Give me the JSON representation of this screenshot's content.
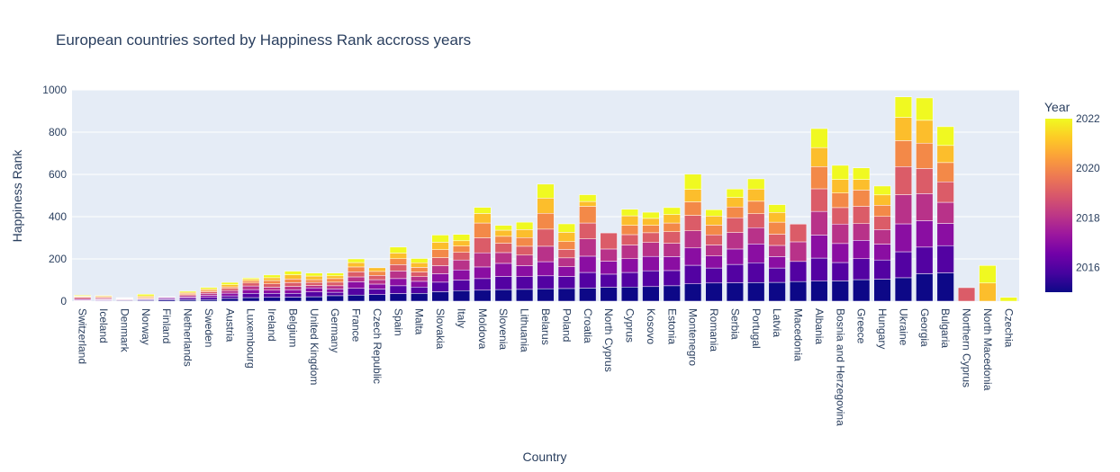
{
  "chart_data": {
    "type": "bar",
    "barmode": "stack",
    "title": "European countries sorted by Happiness Rank accross years",
    "xlabel": "Country",
    "ylabel": "Happiness Rank",
    "ylim": [
      0,
      1000
    ],
    "yticks": [
      0,
      200,
      400,
      600,
      800,
      1000
    ],
    "grid": true,
    "colorbar": {
      "title": "Year",
      "range": [
        2015,
        2022
      ],
      "ticks": [
        2016,
        2018,
        2020,
        2022
      ],
      "colorscale": [
        "#0d0887",
        "#46039f",
        "#7201a8",
        "#9c179e",
        "#bd3786",
        "#d8576b",
        "#ed7953",
        "#fb9f3a",
        "#fdca26",
        "#f0f921"
      ]
    },
    "years": [
      2015,
      2016,
      2017,
      2018,
      2019,
      2020,
      2021,
      2022
    ],
    "categories": [
      "Switzerland",
      "Iceland",
      "Denmark",
      "Norway",
      "Finland",
      "Netherlands",
      "Sweden",
      "Austria",
      "Luxembourg",
      "Ireland",
      "Belgium",
      "United Kingdom",
      "Germany",
      "France",
      "Czech Republic",
      "Spain",
      "Malta",
      "Slovakia",
      "Italy",
      "Moldova",
      "Slovenia",
      "Lithuania",
      "Belarus",
      "Poland",
      "Croatia",
      "North Cyprus",
      "Cyprus",
      "Kosovo",
      "Estonia",
      "Montenegro",
      "Romania",
      "Serbia",
      "Portugal",
      "Latvia",
      "Macedonia",
      "Albania",
      "Bosnia and Herzegovina",
      "Greece",
      "Hungary",
      "Ukraine",
      "Georgia",
      "Bulgaria",
      "Northern Cyprus",
      "North Macedonia",
      "Czechia"
    ],
    "series": [
      {
        "values": [
          1,
          2,
          3,
          4,
          6,
          7,
          8,
          13,
          17,
          18,
          19,
          21,
          26,
          29,
          31,
          36,
          37,
          45,
          50,
          52,
          55,
          56,
          59,
          60,
          62,
          66,
          67,
          69,
          73,
          82,
          86,
          87,
          88,
          89,
          93,
          95,
          96,
          102,
          104,
          111,
          130,
          134,
          null,
          null,
          null
        ]
      },
      {
        "values": [
          2,
          3,
          1,
          4,
          5,
          7,
          10,
          12,
          20,
          19,
          18,
          23,
          16,
          32,
          27,
          37,
          30,
          45,
          50,
          55,
          62,
          60,
          61,
          57,
          74,
          62,
          69,
          75,
          72,
          88,
          71,
          87,
          94,
          68,
          95,
          109,
          87,
          99,
          91,
          123,
          126,
          129,
          null,
          null,
          null
        ]
      },
      {
        "values": [
          4,
          3,
          2,
          1,
          5,
          6,
          10,
          13,
          18,
          15,
          17,
          19,
          16,
          31,
          23,
          34,
          27,
          40,
          48,
          55,
          62,
          52,
          67,
          46,
          77,
          61,
          65,
          68,
          66,
          82,
          57,
          73,
          89,
          54,
          null,
          109,
          90,
          87,
          75,
          132,
          125,
          105,
          null,
          null,
          null
        ]
      },
      {
        "values": [
          5,
          4,
          3,
          2,
          1,
          6,
          9,
          12,
          17,
          14,
          16,
          11,
          15,
          23,
          21,
          36,
          22,
          38,
          47,
          67,
          51,
          50,
          73,
          42,
          82,
          58,
          65,
          66,
          63,
          81,
          52,
          78,
          77,
          53,
          93,
          112,
          92,
          79,
          69,
          138,
          128,
          100,
          null,
          null,
          null
        ]
      },
      {
        "values": [
          6,
          4,
          2,
          3,
          1,
          5,
          7,
          10,
          14,
          16,
          18,
          15,
          17,
          24,
          20,
          30,
          22,
          38,
          36,
          71,
          44,
          42,
          81,
          40,
          75,
          76,
          49,
          46,
          55,
          73,
          48,
          70,
          66,
          53,
          84,
          107,
          78,
          82,
          62,
          133,
          119,
          97,
          64,
          null,
          null
        ]
      },
      {
        "values": [
          3,
          4,
          2,
          5,
          1,
          6,
          7,
          8,
          10,
          16,
          17,
          13,
          17,
          23,
          19,
          28,
          22,
          38,
          30,
          70,
          33,
          41,
          75,
          37,
          79,
          null,
          44,
          35,
          41,
          64,
          46,
          51,
          59,
          57,
          null,
          105,
          69,
          77,
          53,
          123,
          120,
          91,
          null,
          null,
          null
        ]
      },
      {
        "values": [
          3,
          4,
          2,
          6,
          1,
          5,
          7,
          10,
          8,
          13,
          20,
          17,
          13,
          21,
          17,
          27,
          22,
          35,
          25,
          45,
          29,
          38,
          72,
          44,
          23,
          null,
          45,
          33,
          40,
          59,
          43,
          45,
          58,
          46,
          null,
          90,
          64,
          50,
          49,
          110,
          108,
          81,
          null,
          86,
          null
        ]
      },
      {
        "values": [
          4,
          3,
          2,
          8,
          1,
          5,
          7,
          11,
          6,
          13,
          17,
          14,
          13,
          17,
          null,
          28,
          20,
          34,
          30,
          29,
          23,
          35,
          66,
          40,
          32,
          null,
          31,
          29,
          33,
          72,
          30,
          40,
          48,
          37,
          null,
          90,
          67,
          55,
          42,
          97,
          106,
          89,
          null,
          83,
          18
        ]
      }
    ]
  }
}
